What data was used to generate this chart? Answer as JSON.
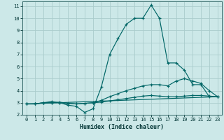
{
  "xlabel": "Humidex (Indice chaleur)",
  "bg_color": "#cce8e8",
  "grid_color": "#aacccc",
  "line_color": "#006666",
  "xlim": [
    -0.5,
    23.5
  ],
  "ylim": [
    2,
    11.4
  ],
  "xticks": [
    0,
    1,
    2,
    3,
    4,
    5,
    6,
    7,
    8,
    9,
    10,
    11,
    12,
    13,
    14,
    15,
    16,
    17,
    18,
    19,
    20,
    21,
    22,
    23
  ],
  "yticks": [
    2,
    3,
    4,
    5,
    6,
    7,
    8,
    9,
    10,
    11
  ],
  "line1_x": [
    0,
    1,
    2,
    3,
    4,
    5,
    6,
    7,
    8,
    9,
    10,
    11,
    12,
    13,
    14,
    15,
    16,
    17,
    18,
    19,
    20,
    21,
    22,
    23
  ],
  "line1_y": [
    2.9,
    2.9,
    3.0,
    3.1,
    3.0,
    2.8,
    2.7,
    2.2,
    2.5,
    4.3,
    7.0,
    8.3,
    9.5,
    10.0,
    10.0,
    11.1,
    10.0,
    6.3,
    6.3,
    5.7,
    4.5,
    4.5,
    3.5,
    3.5
  ],
  "line2_x": [
    0,
    1,
    2,
    3,
    4,
    5,
    6,
    7,
    8,
    9,
    10,
    11,
    12,
    13,
    14,
    15,
    16,
    17,
    18,
    19,
    20,
    21,
    22,
    23
  ],
  "line2_y": [
    2.9,
    2.9,
    3.0,
    3.0,
    3.05,
    2.95,
    2.9,
    2.95,
    3.0,
    3.2,
    3.5,
    3.75,
    4.0,
    4.2,
    4.4,
    4.5,
    4.5,
    4.4,
    4.8,
    5.0,
    4.8,
    4.6,
    4.0,
    3.5
  ],
  "line3_x": [
    0,
    1,
    2,
    3,
    4,
    5,
    6,
    7,
    8,
    9,
    10,
    11,
    12,
    13,
    14,
    15,
    16,
    17,
    18,
    19,
    20,
    21,
    22,
    23
  ],
  "line3_y": [
    2.9,
    2.9,
    3.0,
    3.0,
    3.0,
    2.95,
    2.9,
    2.95,
    3.0,
    3.05,
    3.15,
    3.25,
    3.35,
    3.45,
    3.55,
    3.6,
    3.55,
    3.5,
    3.5,
    3.55,
    3.6,
    3.6,
    3.55,
    3.5
  ],
  "line4_x": [
    0,
    23
  ],
  "line4_y": [
    2.9,
    3.5
  ]
}
